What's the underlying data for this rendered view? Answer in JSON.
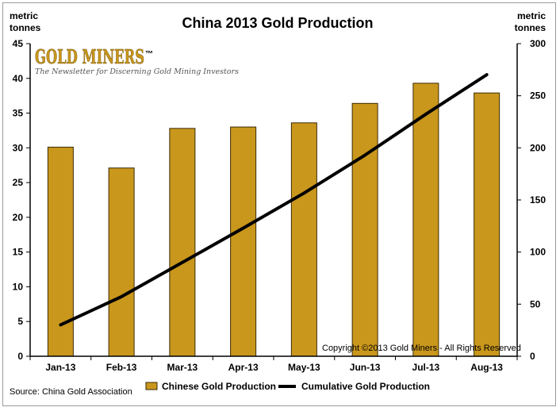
{
  "chart_data": {
    "type": "bar",
    "title": "China 2013 Gold Production",
    "categories": [
      "Jan-13",
      "Feb-13",
      "Mar-13",
      "Apr-13",
      "May-13",
      "Jun-13",
      "Jul-13",
      "Aug-13"
    ],
    "series": [
      {
        "name": "Chinese Gold Production",
        "type": "bar",
        "axis": "left",
        "color": "#c9971c",
        "values": [
          30.1,
          27.1,
          32.8,
          33.0,
          33.6,
          36.4,
          39.3,
          37.9
        ]
      },
      {
        "name": "Cumulative Gold Production",
        "type": "line",
        "axis": "right",
        "color": "#000000",
        "values": [
          30.1,
          57.2,
          90.0,
          123.0,
          156.6,
          193.0,
          232.3,
          270.2
        ]
      }
    ],
    "y_left": {
      "label_line1": "metric",
      "label_line2": "tonnes",
      "min": 0,
      "max": 45,
      "step": 5,
      "ticks": [
        "0",
        "5",
        "10",
        "15",
        "20",
        "25",
        "30",
        "35",
        "40",
        "45"
      ]
    },
    "y_right": {
      "label_line1": "metric",
      "label_line2": "tonnes",
      "min": 0,
      "max": 300,
      "step": 50,
      "ticks": [
        "0",
        "50",
        "100",
        "150",
        "200",
        "250",
        "300"
      ]
    },
    "legend": {
      "position": "bottom",
      "bar_label": "Chinese Gold Production",
      "line_label": "Cumulative Gold Production"
    },
    "source": "Source:  China Gold Association",
    "copyright": "Copyright  ©2013 Gold Miners - All Rights Reserved",
    "logo": {
      "name": "GOLD MINERS",
      "tagline": "The Newsletter for Discerning Gold Mining Investors"
    }
  }
}
